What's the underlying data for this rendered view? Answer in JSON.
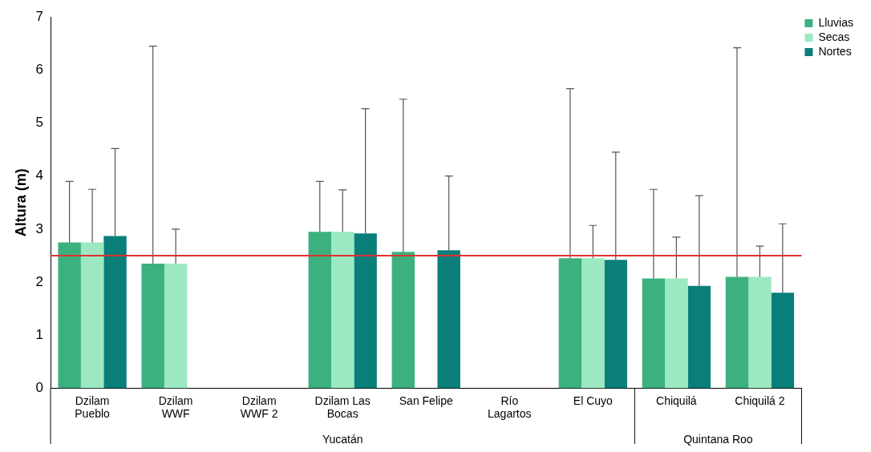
{
  "chart_data": {
    "type": "bar",
    "ylabel": "Altura (m)",
    "categories": [
      "Dzilam Pueblo",
      "Dzilam WWF",
      "Dzilam WWF 2",
      "Dzilam Las Bocas",
      "San Felipe",
      "Río Lagartos",
      "El Cuyo",
      "Chiquilá",
      "Chiquilá 2"
    ],
    "series": [
      {
        "name": "Lluvias",
        "color": "#3cb07e",
        "values": [
          2.75,
          2.35,
          null,
          2.95,
          2.57,
          null,
          2.45,
          2.07,
          2.1
        ],
        "errors": [
          [
            2.75,
            3.9
          ],
          [
            2.35,
            6.45
          ],
          null,
          [
            2.95,
            3.9
          ],
          [
            2.57,
            5.45
          ],
          null,
          [
            2.45,
            5.65
          ],
          [
            2.07,
            3.75
          ],
          [
            2.1,
            6.42
          ]
        ]
      },
      {
        "name": "Secas",
        "color": "#9ce8c0",
        "values": [
          2.75,
          2.35,
          null,
          2.95,
          null,
          null,
          2.45,
          2.07,
          2.1
        ],
        "errors": [
          [
            2.75,
            3.75
          ],
          [
            2.35,
            3.0
          ],
          null,
          [
            2.95,
            3.74
          ],
          null,
          null,
          [
            2.45,
            3.07
          ],
          [
            2.07,
            2.85
          ],
          [
            2.1,
            2.68
          ]
        ]
      },
      {
        "name": "Nortes",
        "color": "#0a7f7a",
        "values": [
          2.87,
          null,
          null,
          2.92,
          2.6,
          null,
          2.42,
          1.93,
          1.8
        ],
        "errors": [
          [
            2.87,
            4.52
          ],
          null,
          null,
          [
            2.92,
            5.27
          ],
          [
            2.6,
            4.0
          ],
          null,
          [
            2.42,
            4.45
          ],
          [
            1.93,
            3.63
          ],
          [
            1.8,
            3.1
          ]
        ]
      }
    ],
    "ylim": [
      0,
      7
    ],
    "yticks": [
      0,
      1,
      2,
      3,
      4,
      5,
      6,
      7
    ],
    "grid": false,
    "legend": "top right",
    "ref_lines": [
      {
        "axis": "y",
        "value": 2.5,
        "color": "#e03030"
      }
    ],
    "annotations": [
      "Yucatán",
      "Quintana Roo"
    ]
  }
}
